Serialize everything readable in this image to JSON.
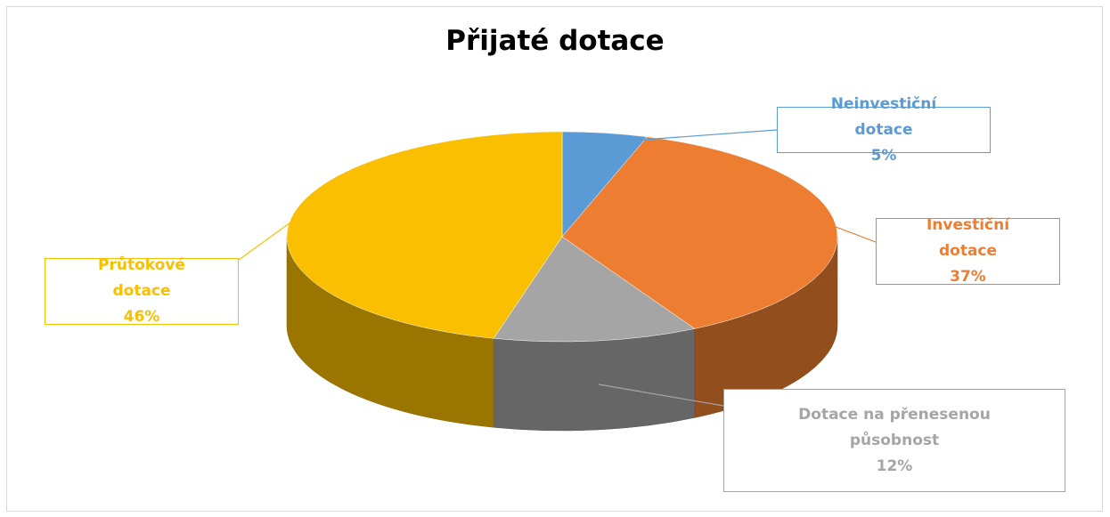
{
  "chart_data": {
    "type": "pie",
    "title": "Přijaté dotace",
    "categories": [
      "Neinvestiční dotace",
      "Investiční dotace",
      "Dotace na přenesenou působnost",
      "Průtokové dotace"
    ],
    "values": [
      5,
      37,
      12,
      46
    ],
    "value_labels": [
      "5%",
      "37%",
      "12%",
      "46%"
    ],
    "colors": [
      "#5b9bd5",
      "#ed7d31",
      "#a5a5a5",
      "#f9bf00"
    ]
  }
}
